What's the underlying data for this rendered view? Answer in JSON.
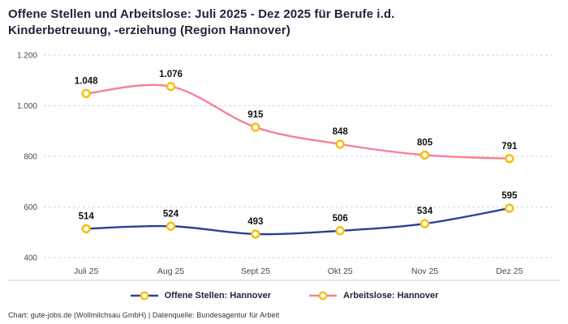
{
  "title": "Offene Stellen und Arbeitslose: Juli 2025 - Dez 2025 für Berufe i.d. Kinderbetreuung, -erziehung (Region Hannover)",
  "footer": "Chart: gute-jobs.de (Wollmilchsau GmbH) | Datenquelle: Bundesagentur für Arbeit",
  "colors": {
    "title_text": "#21243d",
    "series_open_positions": "#27419a",
    "series_unemployed": "#f97f96",
    "marker_ring": "#f2c114",
    "marker_fill": "#ffffff",
    "gridline": "#d6d6d6",
    "separator": "#cfcfcf",
    "tick_text": "#4a4a4a",
    "data_label_text": "#111111"
  },
  "chart_data": {
    "type": "line",
    "categories": [
      "Juli 25",
      "Aug 25",
      "Sept 25",
      "Okt 25",
      "Nov 25",
      "Dez 25"
    ],
    "series": [
      {
        "name": "Offene Stellen: Hannover",
        "values": [
          514,
          524,
          493,
          506,
          534,
          595
        ],
        "color": "#27419a"
      },
      {
        "name": "Arbeitslose: Hannover",
        "values": [
          1048,
          1076,
          915,
          848,
          805,
          791
        ],
        "color": "#f97f96"
      }
    ],
    "ylim": [
      400,
      1200
    ],
    "yticks": [
      400,
      600,
      800,
      1000,
      1200
    ],
    "grid": true,
    "legend_position": "bottom",
    "number_format": "de-thousands-dot"
  }
}
